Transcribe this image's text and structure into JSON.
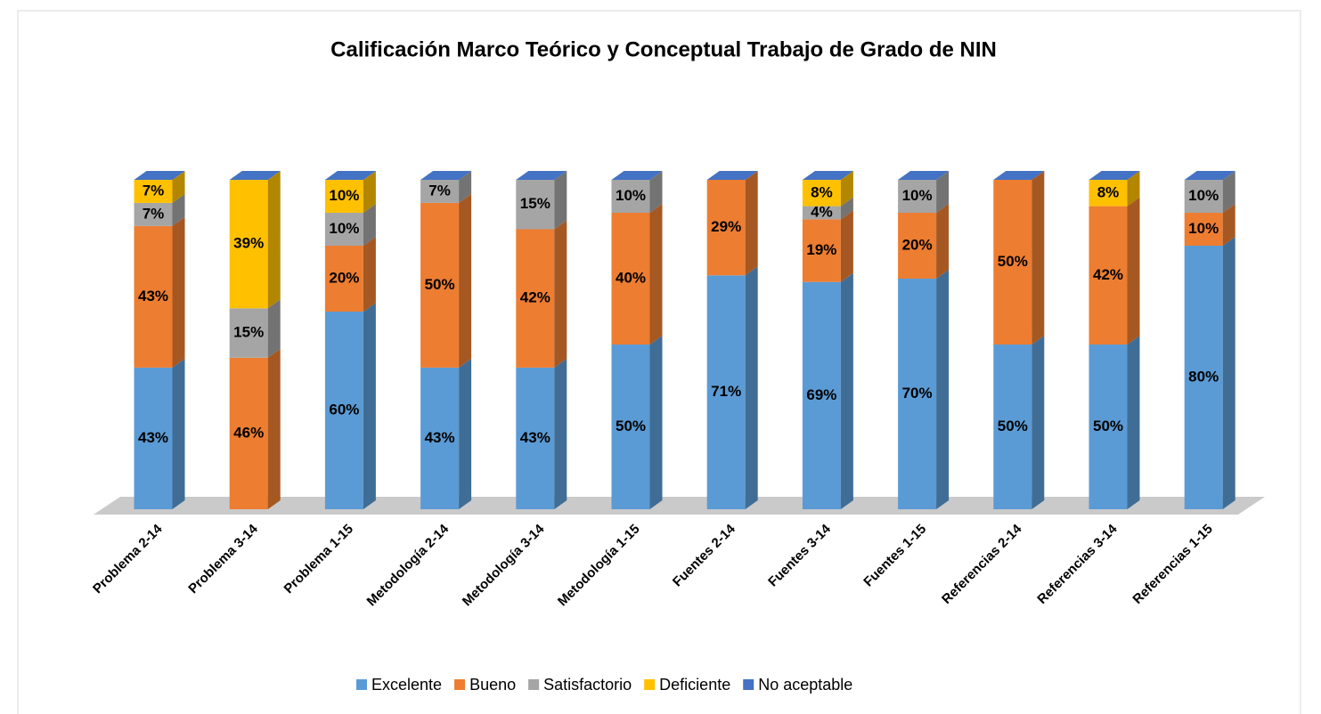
{
  "chart_data": {
    "type": "bar3d_stacked",
    "title": "Calificación Marco Teórico y Conceptual Trabajo de Grado de NIN",
    "categories": [
      "Problema 2-14",
      "Problema 3-14",
      "Problema 1-15",
      "Metodología 2-14",
      "Metodología 3-14",
      "Metodología 1-15",
      "Fuentes 2-14",
      "Fuentes 3-14",
      "Fuentes 1-15",
      "Referencias 2-14",
      "Referencias 3-14",
      "Referencias 1-15"
    ],
    "ylim": [
      0,
      100
    ],
    "series": [
      {
        "name": "Excelente",
        "color": "#5b9bd5",
        "values": [
          43,
          0,
          60,
          43,
          43,
          50,
          71,
          69,
          70,
          50,
          50,
          80
        ],
        "value_labels": [
          "43%",
          null,
          "60%",
          "43%",
          "43%",
          "50%",
          "71%",
          "69%",
          "70%",
          "50%",
          "50%",
          "80%"
        ]
      },
      {
        "name": "Bueno",
        "color": "#ed7d31",
        "values": [
          43,
          46,
          20,
          50,
          42,
          40,
          29,
          19,
          20,
          50,
          42,
          10
        ],
        "value_labels": [
          "43%",
          "46%",
          "20%",
          "50%",
          "42%",
          "40%",
          "29%",
          "19%",
          "20%",
          "50%",
          "42%",
          "10%"
        ]
      },
      {
        "name": "Satisfactorio",
        "color": "#a5a5a5",
        "values": [
          7,
          15,
          10,
          7,
          15,
          10,
          0,
          4,
          10,
          0,
          0,
          10
        ],
        "value_labels": [
          "7%",
          "15%",
          "10%",
          "7%",
          "15%",
          "10%",
          null,
          "4%",
          "10%",
          null,
          null,
          "10%"
        ]
      },
      {
        "name": "Deficiente",
        "color": "#ffc000",
        "values": [
          7,
          39,
          10,
          0,
          0,
          0,
          0,
          8,
          0,
          0,
          8,
          0
        ],
        "value_labels": [
          "7%",
          "39%",
          "10%",
          null,
          null,
          null,
          null,
          "8%",
          null,
          null,
          "8%",
          null
        ]
      },
      {
        "name": "No aceptable",
        "color": "#4472c4",
        "values": [
          0,
          0,
          0,
          0,
          0,
          0,
          0,
          0,
          0,
          0,
          0,
          0
        ],
        "value_labels": [
          null,
          null,
          null,
          null,
          null,
          null,
          null,
          null,
          null,
          null,
          null,
          null
        ]
      }
    ]
  }
}
